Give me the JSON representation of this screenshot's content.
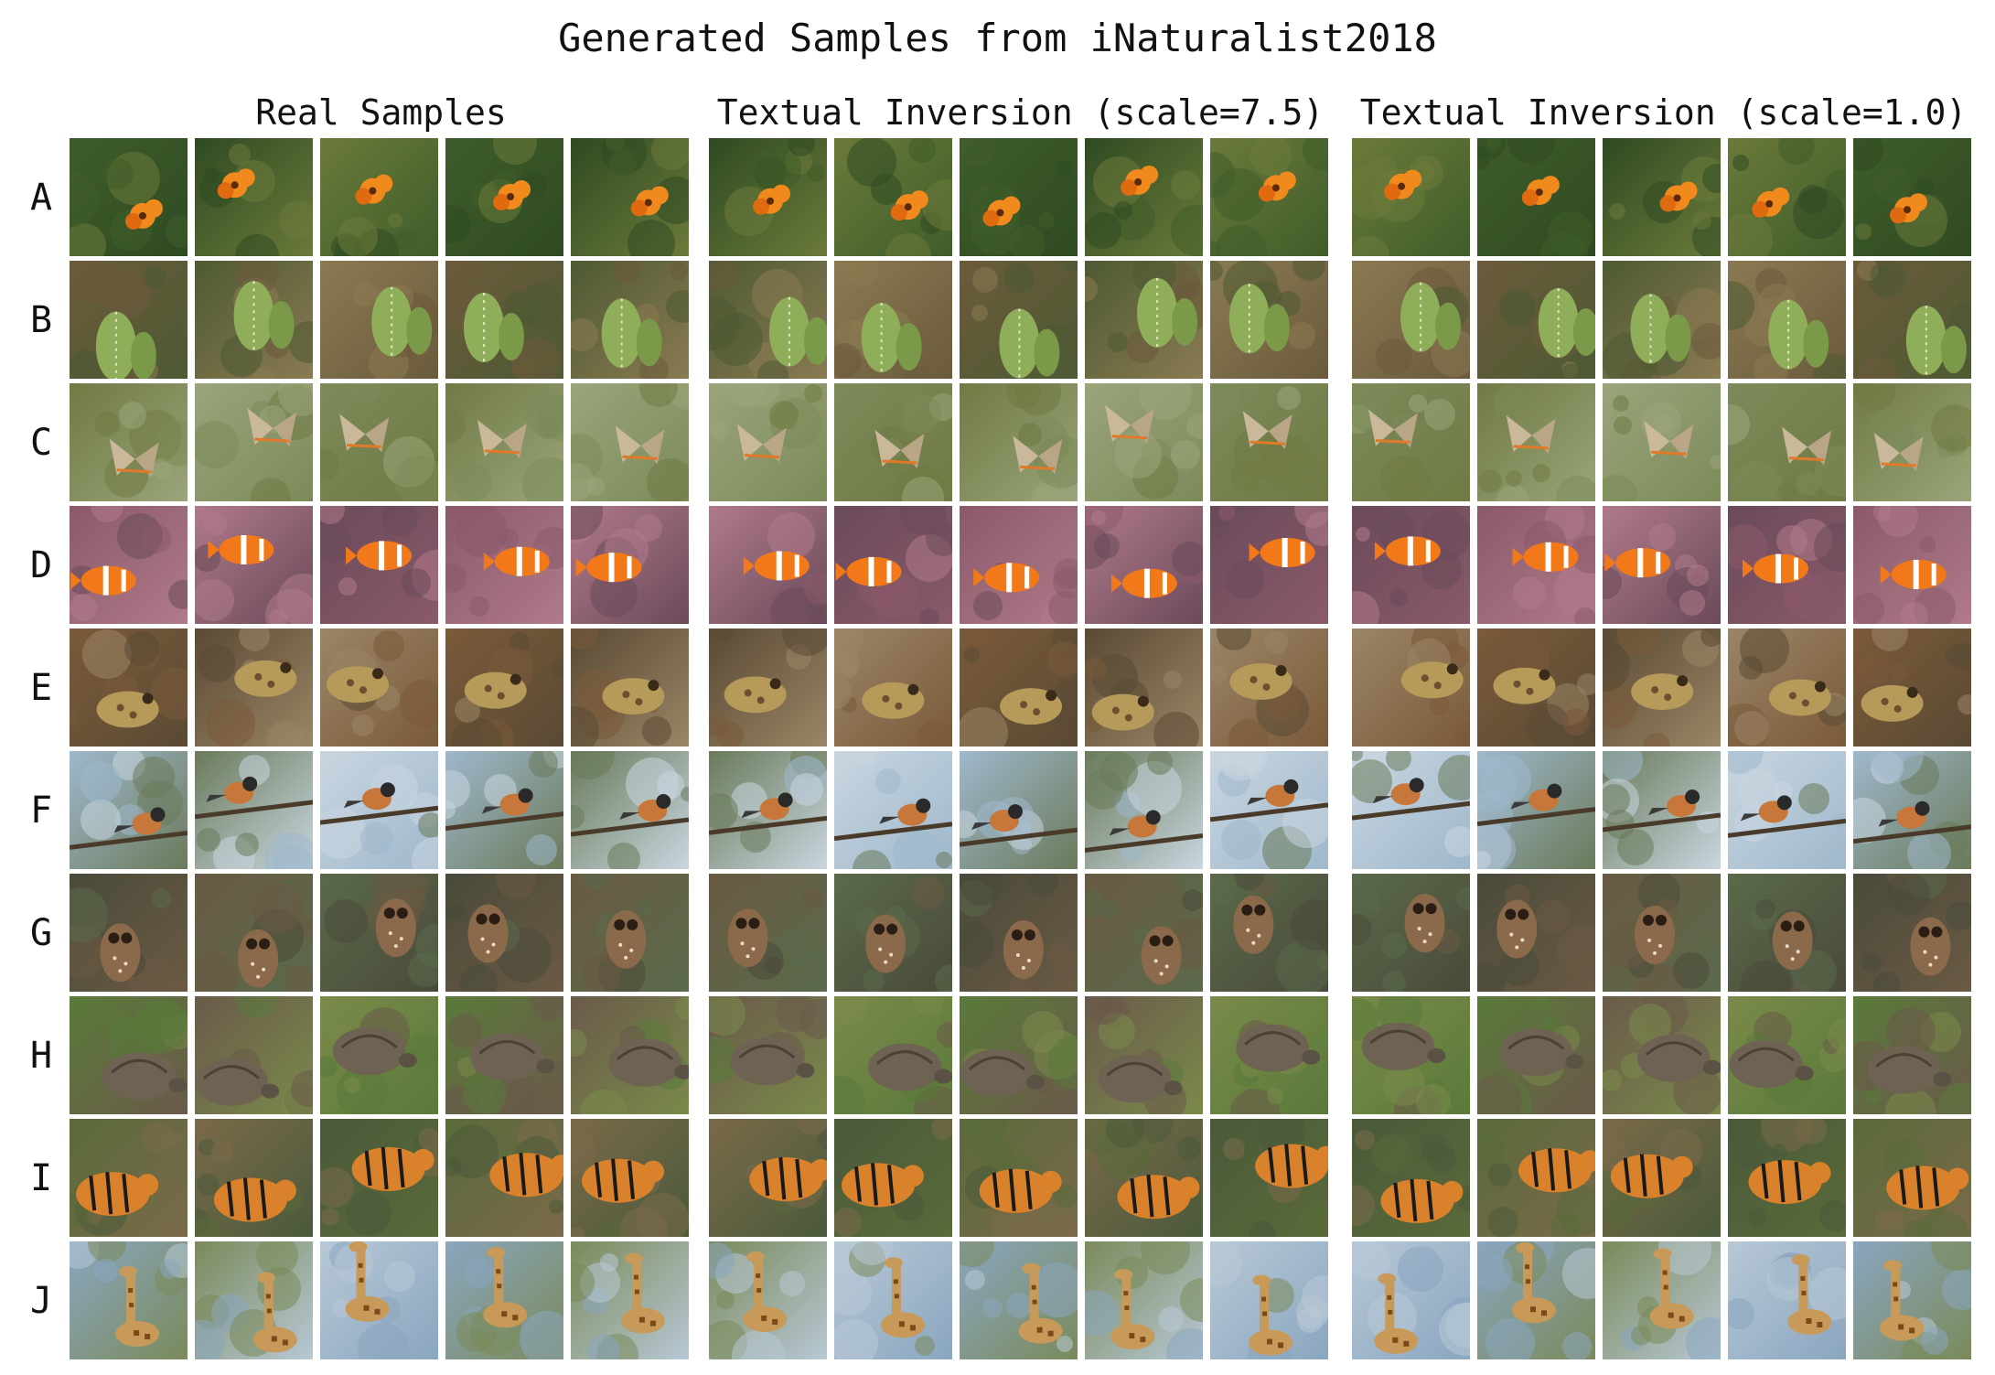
{
  "figure_title": "Generated Samples from iNaturalist2018",
  "panels": [
    {
      "title": "Real Samples"
    },
    {
      "title": "Textual Inversion (scale=7.5)"
    },
    {
      "title": "Textual Inversion (scale=1.0)"
    }
  ],
  "row_labels": [
    "A",
    "B",
    "C",
    "D",
    "E",
    "F",
    "G",
    "H",
    "I",
    "J"
  ],
  "rows": [
    {
      "subject": "orange lily flower",
      "bg": [
        "#3f5d2a",
        "#2f4a22",
        "#6b7a3a"
      ],
      "fg": "#f08a1c",
      "shape": "flower"
    },
    {
      "subject": "cactus",
      "bg": [
        "#6b5a3c",
        "#4d5a33",
        "#8a7a52"
      ],
      "fg": "#8fae5a",
      "shape": "cactus"
    },
    {
      "subject": "hairstreak butterfly",
      "bg": [
        "#6f7a44",
        "#9aa57a",
        "#7c8a5a"
      ],
      "fg": "#c9b89a",
      "shape": "butterfly"
    },
    {
      "subject": "clownfish in anemone",
      "bg": [
        "#8a5a6a",
        "#b07a8a",
        "#6a4a5a"
      ],
      "fg": "#f2791a",
      "shape": "fish"
    },
    {
      "subject": "toad",
      "bg": [
        "#7a5a3a",
        "#5a4a34",
        "#9a8566"
      ],
      "fg": "#b59a5a",
      "shape": "toad"
    },
    {
      "subject": "small bird on branch",
      "bg": [
        "#9fb8cc",
        "#6a7a5a",
        "#c9d6e0"
      ],
      "fg": "#c8773a",
      "shape": "bird"
    },
    {
      "subject": "spotted owl",
      "bg": [
        "#4a4a3a",
        "#6a5a44",
        "#5a6a4a"
      ],
      "fg": "#8a6a4a",
      "shape": "owl"
    },
    {
      "subject": "tortoise",
      "bg": [
        "#5a7a3a",
        "#6a5a4a",
        "#7a8a4a"
      ],
      "fg": "#6e6352",
      "shape": "tortoise"
    },
    {
      "subject": "tiger",
      "bg": [
        "#5a6a3a",
        "#7a6a4a",
        "#4a5a3a"
      ],
      "fg": "#d9822b",
      "shape": "tiger"
    },
    {
      "subject": "giraffe",
      "bg": [
        "#8aa6c0",
        "#7a8a5a",
        "#b8c8d6"
      ],
      "fg": "#c89a5a",
      "shape": "giraffe"
    }
  ]
}
